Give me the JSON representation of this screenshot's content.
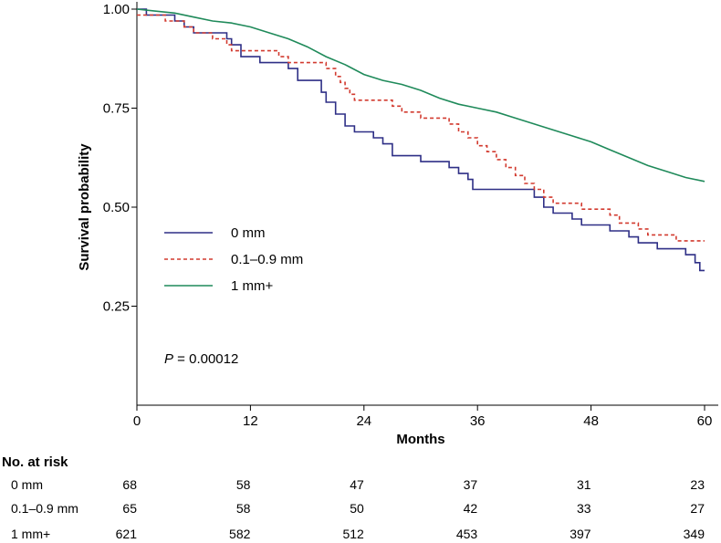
{
  "chart_data": {
    "type": "line",
    "subtype": "kaplan-meier",
    "xlabel": "Months",
    "ylabel": "Survival probability",
    "xlim": [
      0,
      60
    ],
    "ylim": [
      0,
      1.0
    ],
    "xticks": [
      0,
      12,
      24,
      36,
      48,
      60
    ],
    "xtick_labels": [
      "0",
      "12",
      "24",
      "36",
      "48",
      "60"
    ],
    "yticks": [
      1.0,
      0.75,
      0.5,
      0.25
    ],
    "ytick_labels": [
      "1.00",
      "0.75",
      "0.50",
      "0.25"
    ],
    "legend_position": "middle-left",
    "annotation": {
      "p_label": "P",
      "p_value": " = 0.00012"
    },
    "series": [
      {
        "name": "0 mm",
        "color": "#2e2f86",
        "dash": "solid",
        "points": [
          [
            0,
            1.0
          ],
          [
            1,
            1.0
          ],
          [
            1,
            0.985
          ],
          [
            4,
            0.985
          ],
          [
            4,
            0.97
          ],
          [
            5,
            0.97
          ],
          [
            5,
            0.955
          ],
          [
            6,
            0.955
          ],
          [
            6,
            0.94
          ],
          [
            9.5,
            0.94
          ],
          [
            9.5,
            0.925
          ],
          [
            10,
            0.925
          ],
          [
            10,
            0.91
          ],
          [
            11,
            0.91
          ],
          [
            11,
            0.88
          ],
          [
            13,
            0.88
          ],
          [
            13,
            0.865
          ],
          [
            16,
            0.865
          ],
          [
            16,
            0.85
          ],
          [
            17,
            0.85
          ],
          [
            17,
            0.82
          ],
          [
            19.5,
            0.82
          ],
          [
            19.5,
            0.79
          ],
          [
            20,
            0.79
          ],
          [
            20,
            0.765
          ],
          [
            21,
            0.765
          ],
          [
            21,
            0.735
          ],
          [
            22,
            0.735
          ],
          [
            22,
            0.705
          ],
          [
            23,
            0.705
          ],
          [
            23,
            0.69
          ],
          [
            25,
            0.69
          ],
          [
            25,
            0.675
          ],
          [
            26,
            0.675
          ],
          [
            26,
            0.66
          ],
          [
            27,
            0.66
          ],
          [
            27,
            0.63
          ],
          [
            30,
            0.63
          ],
          [
            30,
            0.615
          ],
          [
            33,
            0.615
          ],
          [
            33,
            0.6
          ],
          [
            34,
            0.6
          ],
          [
            34,
            0.585
          ],
          [
            35,
            0.585
          ],
          [
            35,
            0.57
          ],
          [
            35.5,
            0.57
          ],
          [
            35.5,
            0.545
          ],
          [
            42,
            0.545
          ],
          [
            42,
            0.525
          ],
          [
            43,
            0.525
          ],
          [
            43,
            0.5
          ],
          [
            44,
            0.5
          ],
          [
            44,
            0.485
          ],
          [
            46,
            0.485
          ],
          [
            46,
            0.47
          ],
          [
            47,
            0.47
          ],
          [
            47,
            0.455
          ],
          [
            50,
            0.455
          ],
          [
            50,
            0.44
          ],
          [
            52,
            0.44
          ],
          [
            52,
            0.425
          ],
          [
            53,
            0.425
          ],
          [
            53,
            0.41
          ],
          [
            55,
            0.41
          ],
          [
            55,
            0.395
          ],
          [
            58,
            0.395
          ],
          [
            58,
            0.38
          ],
          [
            59,
            0.38
          ],
          [
            59,
            0.36
          ],
          [
            59.5,
            0.36
          ],
          [
            59.5,
            0.34
          ],
          [
            60,
            0.34
          ]
        ]
      },
      {
        "name": "0.1–0.9 mm",
        "color": "#d23a2f",
        "dash": "dashed",
        "points": [
          [
            0,
            0.985
          ],
          [
            3,
            0.985
          ],
          [
            3,
            0.97
          ],
          [
            5,
            0.97
          ],
          [
            5,
            0.955
          ],
          [
            6,
            0.955
          ],
          [
            6,
            0.94
          ],
          [
            8,
            0.94
          ],
          [
            8,
            0.925
          ],
          [
            9.5,
            0.925
          ],
          [
            9.5,
            0.91
          ],
          [
            10,
            0.91
          ],
          [
            10,
            0.895
          ],
          [
            15,
            0.895
          ],
          [
            15,
            0.88
          ],
          [
            16,
            0.88
          ],
          [
            16,
            0.865
          ],
          [
            20,
            0.865
          ],
          [
            20,
            0.85
          ],
          [
            21,
            0.85
          ],
          [
            21,
            0.83
          ],
          [
            21.5,
            0.83
          ],
          [
            21.5,
            0.815
          ],
          [
            22,
            0.815
          ],
          [
            22,
            0.8
          ],
          [
            22.5,
            0.8
          ],
          [
            22.5,
            0.785
          ],
          [
            23,
            0.785
          ],
          [
            23,
            0.77
          ],
          [
            27,
            0.77
          ],
          [
            27,
            0.755
          ],
          [
            28,
            0.755
          ],
          [
            28,
            0.74
          ],
          [
            30,
            0.74
          ],
          [
            30,
            0.725
          ],
          [
            33,
            0.725
          ],
          [
            33,
            0.71
          ],
          [
            34,
            0.71
          ],
          [
            34,
            0.69
          ],
          [
            35,
            0.69
          ],
          [
            35,
            0.675
          ],
          [
            36,
            0.675
          ],
          [
            36,
            0.655
          ],
          [
            37,
            0.655
          ],
          [
            37,
            0.64
          ],
          [
            38,
            0.64
          ],
          [
            38,
            0.62
          ],
          [
            39,
            0.62
          ],
          [
            39,
            0.6
          ],
          [
            40,
            0.6
          ],
          [
            40,
            0.58
          ],
          [
            41,
            0.58
          ],
          [
            41,
            0.56
          ],
          [
            42,
            0.56
          ],
          [
            42,
            0.545
          ],
          [
            43,
            0.545
          ],
          [
            43,
            0.525
          ],
          [
            44,
            0.525
          ],
          [
            44,
            0.51
          ],
          [
            47,
            0.51
          ],
          [
            47,
            0.495
          ],
          [
            50,
            0.495
          ],
          [
            50,
            0.48
          ],
          [
            51,
            0.48
          ],
          [
            51,
            0.46
          ],
          [
            53,
            0.46
          ],
          [
            53,
            0.445
          ],
          [
            54,
            0.445
          ],
          [
            54,
            0.43
          ],
          [
            57,
            0.43
          ],
          [
            57,
            0.415
          ],
          [
            60,
            0.415
          ]
        ]
      },
      {
        "name": "1 mm+",
        "color": "#1f8a5a",
        "dash": "solid",
        "points": [
          [
            0,
            1.0
          ],
          [
            2,
            0.995
          ],
          [
            4,
            0.99
          ],
          [
            6,
            0.98
          ],
          [
            8,
            0.97
          ],
          [
            10,
            0.965
          ],
          [
            12,
            0.955
          ],
          [
            14,
            0.94
          ],
          [
            16,
            0.925
          ],
          [
            18,
            0.905
          ],
          [
            20,
            0.88
          ],
          [
            22,
            0.86
          ],
          [
            24,
            0.835
          ],
          [
            26,
            0.82
          ],
          [
            28,
            0.81
          ],
          [
            30,
            0.795
          ],
          [
            32,
            0.775
          ],
          [
            34,
            0.76
          ],
          [
            36,
            0.75
          ],
          [
            38,
            0.74
          ],
          [
            40,
            0.725
          ],
          [
            42,
            0.71
          ],
          [
            44,
            0.695
          ],
          [
            46,
            0.68
          ],
          [
            48,
            0.665
          ],
          [
            50,
            0.645
          ],
          [
            52,
            0.625
          ],
          [
            54,
            0.605
          ],
          [
            56,
            0.59
          ],
          [
            58,
            0.575
          ],
          [
            60,
            0.565
          ]
        ]
      }
    ]
  },
  "risk_table": {
    "title": "No. at risk",
    "rows": [
      {
        "label": "0 mm",
        "values": [
          "68",
          "58",
          "47",
          "37",
          "31",
          "23"
        ]
      },
      {
        "label": "0.1–0.9 mm",
        "values": [
          "65",
          "58",
          "50",
          "42",
          "33",
          "27"
        ]
      },
      {
        "label": "1 mm+",
        "values": [
          "621",
          "582",
          "512",
          "453",
          "397",
          "349"
        ]
      }
    ]
  }
}
